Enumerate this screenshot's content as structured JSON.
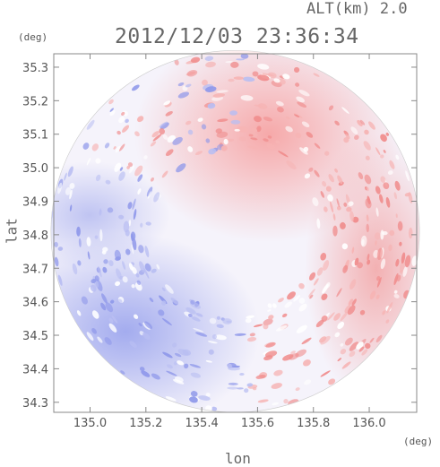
{
  "header": {
    "altitude_label": "ALT(km) 2.0",
    "timestamp": "2012/12/03 23:36:34"
  },
  "axes": {
    "x_label": "lon",
    "y_label": "lat",
    "x_unit": "(deg)",
    "y_unit": "(deg)",
    "x_range": [
      134.87,
      136.17
    ],
    "y_range": [
      34.27,
      35.34
    ],
    "x_ticks": [
      "135.0",
      "135.2",
      "135.4",
      "135.6",
      "135.8",
      "136.0"
    ],
    "x_tick_values": [
      135.0,
      135.2,
      135.4,
      135.6,
      135.8,
      136.0
    ],
    "y_ticks": [
      "35.3",
      "35.2",
      "35.1",
      "35.0",
      "34.9",
      "34.8",
      "34.7",
      "34.6",
      "34.5",
      "34.4",
      "34.3"
    ],
    "y_tick_values": [
      35.3,
      35.2,
      35.1,
      35.0,
      34.9,
      34.8,
      34.7,
      34.6,
      34.5,
      34.4,
      34.3
    ]
  },
  "radar": {
    "center_lon": 135.52,
    "center_lat": 34.81,
    "radius_deg_lon": 0.66,
    "radius_deg_lat": 0.54
  },
  "colors": {
    "positive": "#f4a0a0",
    "negative": "#a6aef0",
    "neutral": "#f6f4fb",
    "frame": "#888888"
  }
}
